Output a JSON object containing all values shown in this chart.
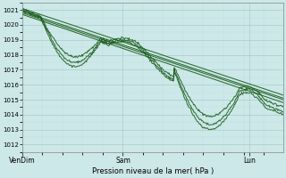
{
  "title": "",
  "xlabel": "Pression niveau de la mer( hPa )",
  "bg_color": "#cce8e8",
  "plot_bg_color": "#cce8e8",
  "grid_major_color": "#aacccc",
  "grid_minor_color": "#c0dcdc",
  "line_color": "#1a5c1a",
  "ylim": [
    1011.5,
    1021.5
  ],
  "yticks": [
    1012,
    1013,
    1014,
    1015,
    1016,
    1017,
    1018,
    1019,
    1020,
    1021
  ],
  "xtick_labels": [
    "VenDim",
    "Sam",
    "Lun"
  ],
  "xtick_positions": [
    0.0,
    0.385,
    0.87
  ]
}
